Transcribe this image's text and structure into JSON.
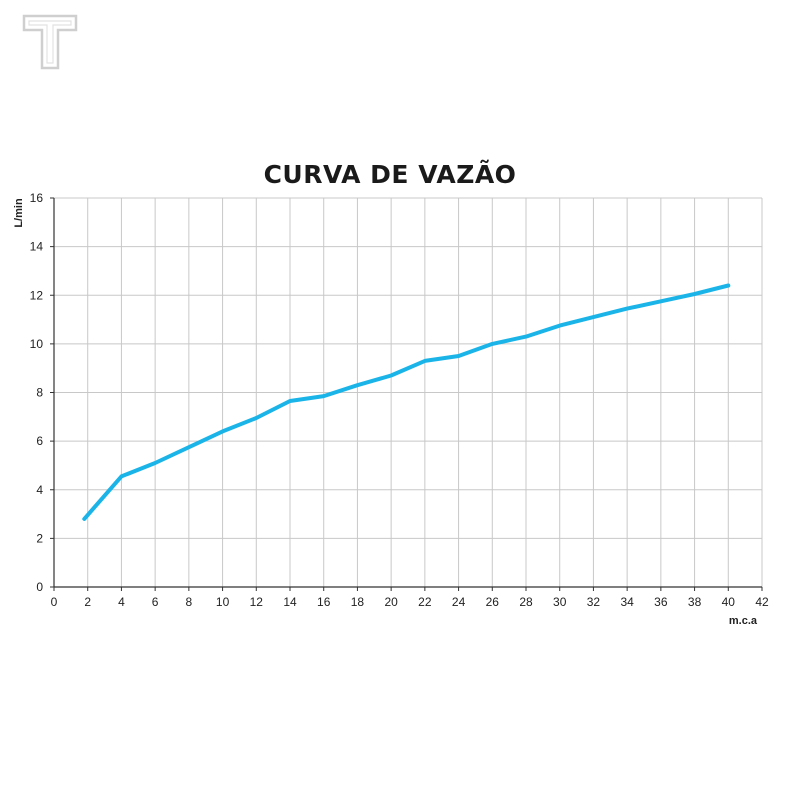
{
  "logo": {
    "icon": "t-logo-icon",
    "color": "#d0d0d0"
  },
  "chart_data": {
    "type": "line",
    "title": "CURVA DE VAZÃO",
    "xlabel": "m.c.a",
    "ylabel": "L/min",
    "xlim": [
      0,
      42
    ],
    "ylim": [
      0,
      16
    ],
    "xticks": [
      0,
      2,
      4,
      6,
      8,
      10,
      12,
      14,
      16,
      18,
      20,
      22,
      24,
      26,
      28,
      30,
      32,
      34,
      36,
      38,
      40,
      42
    ],
    "yticks": [
      0,
      2,
      4,
      6,
      8,
      10,
      12,
      14,
      16
    ],
    "grid": true,
    "series": [
      {
        "color": "#1bb4e8",
        "x": [
          1.8,
          4,
          6,
          8,
          10,
          12,
          14,
          16,
          18,
          20,
          22,
          24,
          26,
          28,
          30,
          32,
          34,
          36,
          38,
          40
        ],
        "y": [
          2.8,
          4.55,
          5.1,
          5.75,
          6.4,
          6.95,
          7.65,
          7.85,
          8.3,
          8.7,
          9.3,
          9.5,
          10.0,
          10.3,
          10.75,
          11.1,
          11.45,
          11.75,
          12.05,
          12.4
        ]
      }
    ]
  }
}
